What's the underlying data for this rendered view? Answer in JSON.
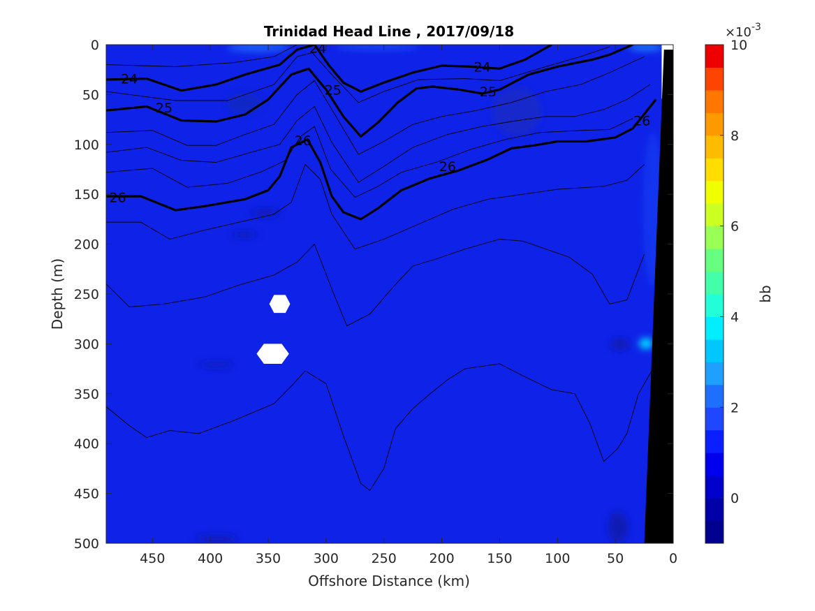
{
  "chart_data": {
    "type": "heatmap",
    "title": "Trinidad Head Line , 2017/09/18",
    "xlabel": "Offshore Distance (km)",
    "ylabel": "Depth (m)",
    "xlim": [
      490,
      0
    ],
    "ylim": [
      0,
      500
    ],
    "x_reversed": true,
    "y_reversed": true,
    "x_ticks": [
      450,
      400,
      350,
      300,
      250,
      200,
      150,
      100,
      50,
      0
    ],
    "y_ticks": [
      0,
      50,
      100,
      150,
      200,
      250,
      300,
      350,
      400,
      450,
      500
    ],
    "colorbar": {
      "label": "bb",
      "exponent_label": "×10",
      "exponent": "-3",
      "range": [
        -1,
        10
      ],
      "ticks": [
        0,
        2,
        4,
        6,
        8,
        10
      ],
      "levels": [
        -1,
        -0.5,
        0,
        0.5,
        1,
        1.5,
        2,
        2.5,
        3,
        3.5,
        4,
        4.5,
        5,
        5.5,
        6,
        6.5,
        7,
        7.5,
        8,
        8.5,
        9,
        9.5,
        10
      ],
      "colors": [
        "#00008f",
        "#0000a8",
        "#0000cc",
        "#0000ee",
        "#0a1fff",
        "#1f47ff",
        "#1f6fff",
        "#1fa0ff",
        "#00c8ff",
        "#00eeff",
        "#22ffd8",
        "#44ffaa",
        "#66ff7f",
        "#99ff55",
        "#ccff22",
        "#f0ff00",
        "#ffdd00",
        "#ffbb00",
        "#ff9900",
        "#ff7700",
        "#ff4400",
        "#ee0000",
        "#cc0000",
        "#990000"
      ]
    },
    "field": {
      "background_bb": 0.3,
      "background_color": "#0f23e8"
    },
    "contours": [
      {
        "label": "24",
        "bold": true,
        "points": [
          [
            490,
            35
          ],
          [
            455,
            34
          ],
          [
            425,
            46
          ],
          [
            395,
            40
          ],
          [
            370,
            30
          ],
          [
            340,
            20
          ],
          [
            325,
            5
          ],
          [
            310,
            0
          ],
          [
            298,
            20
          ],
          [
            285,
            38
          ],
          [
            270,
            47
          ],
          [
            250,
            38
          ],
          [
            225,
            28
          ],
          [
            200,
            21
          ],
          [
            175,
            22
          ],
          [
            150,
            24
          ],
          [
            128,
            15
          ],
          [
            105,
            0
          ]
        ],
        "labels": [
          [
            470,
            34
          ],
          [
            165,
            22
          ],
          [
            307,
            3
          ]
        ]
      },
      {
        "label": "25",
        "bold": true,
        "points": [
          [
            490,
            66
          ],
          [
            455,
            62
          ],
          [
            425,
            76
          ],
          [
            395,
            77
          ],
          [
            370,
            70
          ],
          [
            350,
            55
          ],
          [
            330,
            30
          ],
          [
            315,
            24
          ],
          [
            300,
            45
          ],
          [
            285,
            72
          ],
          [
            270,
            92
          ],
          [
            255,
            78
          ],
          [
            238,
            58
          ],
          [
            222,
            44
          ],
          [
            208,
            42
          ],
          [
            185,
            45
          ],
          [
            165,
            49
          ],
          [
            150,
            45
          ],
          [
            125,
            30
          ],
          [
            100,
            22
          ],
          [
            70,
            15
          ],
          [
            55,
            10
          ],
          [
            35,
            0
          ]
        ],
        "labels": [
          [
            440,
            63
          ],
          [
            160,
            47
          ],
          [
            294,
            45
          ]
        ]
      },
      {
        "label": "26",
        "bold": true,
        "points": [
          [
            490,
            152
          ],
          [
            460,
            152
          ],
          [
            430,
            166
          ],
          [
            405,
            162
          ],
          [
            370,
            155
          ],
          [
            350,
            146
          ],
          [
            340,
            132
          ],
          [
            330,
            103
          ],
          [
            316,
            95
          ],
          [
            305,
            118
          ],
          [
            295,
            152
          ],
          [
            285,
            168
          ],
          [
            270,
            175
          ],
          [
            255,
            164
          ],
          [
            235,
            146
          ],
          [
            210,
            134
          ],
          [
            185,
            126
          ],
          [
            160,
            115
          ],
          [
            140,
            104
          ],
          [
            120,
            101
          ],
          [
            100,
            97
          ],
          [
            75,
            97
          ],
          [
            50,
            93
          ],
          [
            35,
            84
          ],
          [
            15,
            55
          ]
        ],
        "labels": [
          [
            480,
            153
          ],
          [
            195,
            122
          ],
          [
            320,
            96
          ],
          [
            27,
            76
          ]
        ]
      },
      {
        "label": "",
        "bold": false,
        "points": [
          [
            490,
            20
          ],
          [
            430,
            22
          ],
          [
            380,
            18
          ],
          [
            345,
            12
          ],
          [
            325,
            0
          ]
        ]
      },
      {
        "label": "",
        "bold": false,
        "points": [
          [
            490,
            47
          ],
          [
            430,
            56
          ],
          [
            385,
            56
          ],
          [
            345,
            40
          ],
          [
            325,
            12
          ],
          [
            312,
            8
          ],
          [
            295,
            30
          ],
          [
            272,
            58
          ],
          [
            250,
            47
          ],
          [
            220,
            35
          ],
          [
            180,
            34
          ],
          [
            150,
            36
          ],
          [
            110,
            22
          ],
          [
            80,
            12
          ],
          [
            55,
            2
          ]
        ]
      },
      {
        "label": "",
        "bold": false,
        "points": [
          [
            490,
            88
          ],
          [
            450,
            86
          ],
          [
            420,
            101
          ],
          [
            395,
            101
          ],
          [
            370,
            90
          ],
          [
            345,
            80
          ],
          [
            325,
            50
          ],
          [
            310,
            36
          ],
          [
            295,
            65
          ],
          [
            272,
            110
          ],
          [
            250,
            97
          ],
          [
            225,
            80
          ],
          [
            200,
            72
          ],
          [
            170,
            66
          ],
          [
            140,
            58
          ],
          [
            110,
            47
          ],
          [
            80,
            40
          ],
          [
            55,
            28
          ],
          [
            25,
            12
          ]
        ]
      },
      {
        "label": "",
        "bold": false,
        "points": [
          [
            490,
            108
          ],
          [
            455,
            103
          ],
          [
            425,
            116
          ],
          [
            395,
            118
          ],
          [
            365,
            108
          ],
          [
            340,
            100
          ],
          [
            325,
            76
          ],
          [
            310,
            62
          ],
          [
            295,
            98
          ],
          [
            272,
            138
          ],
          [
            250,
            122
          ],
          [
            225,
            103
          ],
          [
            195,
            90
          ],
          [
            165,
            82
          ],
          [
            140,
            77
          ],
          [
            110,
            72
          ],
          [
            85,
            72
          ],
          [
            60,
            65
          ],
          [
            40,
            55
          ],
          [
            20,
            40
          ]
        ]
      },
      {
        "label": "",
        "bold": false,
        "points": [
          [
            490,
            128
          ],
          [
            450,
            124
          ],
          [
            420,
            143
          ],
          [
            385,
            139
          ],
          [
            355,
            127
          ],
          [
            335,
            116
          ],
          [
            322,
            92
          ],
          [
            310,
            82
          ],
          [
            296,
            125
          ],
          [
            275,
            153
          ],
          [
            255,
            142
          ],
          [
            235,
            128
          ],
          [
            205,
            118
          ],
          [
            175,
            105
          ],
          [
            145,
            95
          ],
          [
            115,
            88
          ],
          [
            80,
            86
          ],
          [
            55,
            85
          ],
          [
            35,
            74
          ]
        ]
      },
      {
        "label": "",
        "bold": false,
        "points": [
          [
            490,
            178
          ],
          [
            460,
            178
          ],
          [
            435,
            195
          ],
          [
            405,
            186
          ],
          [
            375,
            178
          ],
          [
            345,
            170
          ],
          [
            330,
            158
          ],
          [
            318,
            120
          ],
          [
            305,
            135
          ],
          [
            295,
            170
          ],
          [
            275,
            205
          ],
          [
            250,
            195
          ],
          [
            220,
            180
          ],
          [
            190,
            165
          ],
          [
            160,
            155
          ],
          [
            130,
            150
          ],
          [
            100,
            145
          ],
          [
            60,
            142
          ],
          [
            40,
            136
          ],
          [
            25,
            120
          ]
        ]
      },
      {
        "label": "",
        "bold": false,
        "points": [
          [
            490,
            240
          ],
          [
            470,
            263
          ],
          [
            440,
            260
          ],
          [
            405,
            253
          ],
          [
            375,
            241
          ],
          [
            345,
            231
          ],
          [
            325,
            218
          ],
          [
            310,
            200
          ],
          [
            295,
            245
          ],
          [
            282,
            282
          ],
          [
            262,
            270
          ],
          [
            242,
            243
          ],
          [
            225,
            222
          ],
          [
            205,
            215
          ],
          [
            180,
            205
          ],
          [
            150,
            195
          ],
          [
            130,
            197
          ],
          [
            110,
            205
          ],
          [
            90,
            213
          ],
          [
            70,
            230
          ],
          [
            55,
            260
          ],
          [
            40,
            256
          ],
          [
            25,
            210
          ]
        ]
      },
      {
        "label": "",
        "bold": false,
        "points": [
          [
            490,
            363
          ],
          [
            470,
            382
          ],
          [
            455,
            394
          ],
          [
            435,
            387
          ],
          [
            410,
            390
          ],
          [
            380,
            377
          ],
          [
            345,
            360
          ],
          [
            328,
            340
          ],
          [
            318,
            327
          ],
          [
            300,
            340
          ],
          [
            285,
            392
          ],
          [
            270,
            440
          ],
          [
            262,
            447
          ],
          [
            250,
            425
          ],
          [
            240,
            385
          ],
          [
            225,
            365
          ],
          [
            210,
            350
          ],
          [
            195,
            336
          ],
          [
            180,
            325
          ],
          [
            150,
            320
          ],
          [
            130,
            332
          ],
          [
            105,
            346
          ],
          [
            85,
            350
          ],
          [
            72,
            380
          ],
          [
            60,
            418
          ],
          [
            48,
            405
          ],
          [
            40,
            390
          ],
          [
            30,
            350
          ],
          [
            15,
            320
          ]
        ]
      }
    ],
    "missing_data_markers": [
      {
        "x": 340,
        "y": 260,
        "rx": 9,
        "ry": 9
      },
      {
        "x": 346,
        "y": 310,
        "rx": 14,
        "ry": 10
      }
    ],
    "bottom_mask": [
      [
        25,
        500
      ],
      [
        0,
        500
      ],
      [
        0,
        5
      ],
      [
        8,
        5
      ]
    ],
    "top_right_blank": [
      [
        10,
        0
      ],
      [
        0,
        0
      ],
      [
        0,
        5
      ],
      [
        10,
        55
      ]
    ]
  }
}
